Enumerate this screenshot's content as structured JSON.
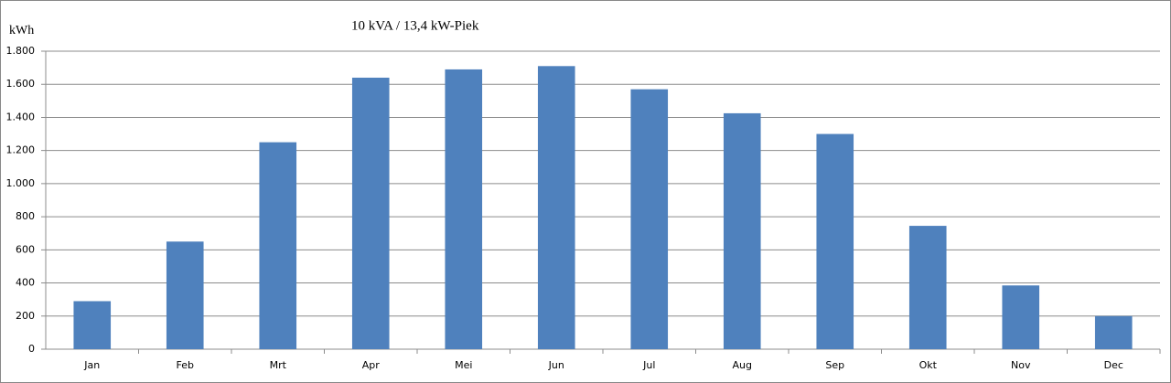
{
  "chart_data": {
    "type": "bar",
    "title": "10 kVA  /  13,4 kW-Piek",
    "y_label": "kWh",
    "categories": [
      "Jan",
      "Feb",
      "Mrt",
      "Apr",
      "Mei",
      "Jun",
      "Jul",
      "Aug",
      "Sep",
      "Okt",
      "Nov",
      "Dec"
    ],
    "values": [
      290,
      650,
      1250,
      1640,
      1690,
      1710,
      1570,
      1425,
      1300,
      745,
      385,
      200
    ],
    "color": "#4f81bd",
    "ylim": [
      0,
      1800
    ],
    "yticks": [
      0,
      200,
      400,
      600,
      800,
      {
        "value": 1000,
        "label": "1.000"
      },
      {
        "value": 1200,
        "label": "1.200"
      },
      {
        "value": 1400,
        "label": "1.400"
      },
      {
        "value": 1600,
        "label": "1.600"
      },
      {
        "value": 1800,
        "label": "1.800"
      }
    ],
    "grid": true
  }
}
